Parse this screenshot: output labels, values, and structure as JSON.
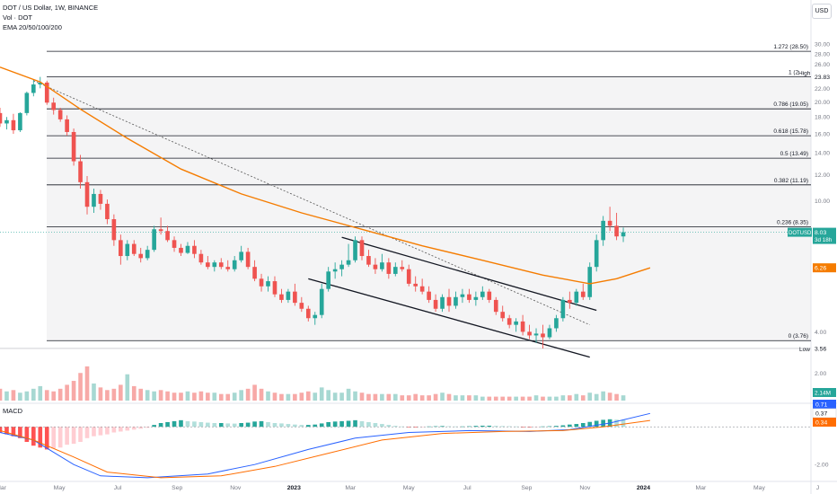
{
  "header": {
    "title": "DOT / US Dollar, 1W, BINANCE",
    "vol": "Vol · DOT",
    "ema": "EMA 20/50/100/200",
    "currency_button": "USD"
  },
  "colors": {
    "up": "#26a69a",
    "down": "#ef5350",
    "ema": "#f57c00",
    "fib": "#131722",
    "dashed": "#555555",
    "macd_line": "#2962ff",
    "signal_line": "#ff6d00",
    "vol_up": "#a7d8d2",
    "vol_down": "#f7a9a7"
  },
  "chart_data": [
    {
      "type": "candlestick",
      "title": "DOT / US Dollar, 1W, BINANCE",
      "y_scale": "log",
      "ylim": [
        3.3,
        36
      ],
      "x_start": "2022-02-28",
      "x_end": "2024-06-24",
      "y_ticks": [
        "2.00",
        "4.00",
        "6.26",
        "8.03",
        "10.00",
        "12.00",
        "14.00",
        "16.00",
        "18.00",
        "20.00",
        "22.00",
        "23.83",
        "26.00",
        "28.00",
        "30.00"
      ],
      "y_tick_values": [
        2,
        4,
        6.26,
        8.03,
        10,
        12,
        14,
        16,
        18,
        20,
        22,
        23.83,
        26,
        28,
        30
      ],
      "x_ticks": [
        {
          "label": "Mar",
          "date": "2022-03-01"
        },
        {
          "label": "May",
          "date": "2022-05-01"
        },
        {
          "label": "Jul",
          "date": "2022-07-01"
        },
        {
          "label": "Sep",
          "date": "2022-09-01"
        },
        {
          "label": "Nov",
          "date": "2022-11-01"
        },
        {
          "label": "2023",
          "date": "2023-01-01"
        },
        {
          "label": "Mar",
          "date": "2023-03-01"
        },
        {
          "label": "May",
          "date": "2023-05-01"
        },
        {
          "label": "Jul",
          "date": "2023-07-01"
        },
        {
          "label": "Sep",
          "date": "2023-09-01"
        },
        {
          "label": "Nov",
          "date": "2023-11-01"
        },
        {
          "label": "2024",
          "date": "2024-01-01"
        },
        {
          "label": "Mar",
          "date": "2024-03-01"
        },
        {
          "label": "May",
          "date": "2024-05-01"
        },
        {
          "label": "J",
          "date": "2024-07-01"
        }
      ],
      "fib_levels": [
        {
          "label": "1.272 (28.50)",
          "value": 28.5
        },
        {
          "label": "1 (2",
          "value": 23.83
        },
        {
          "label": "0.786 (19.05)",
          "value": 19.05
        },
        {
          "label": "0.618 (15.78)",
          "value": 15.78
        },
        {
          "label": "0.5 (13.49)",
          "value": 13.49
        },
        {
          "label": "0.382 (11.19)",
          "value": 11.19
        },
        {
          "label": "0.236 (8.35)",
          "value": 8.35
        },
        {
          "label": "0 (3.76)",
          "value": 3.76
        }
      ],
      "annotations": {
        "high_label": "High",
        "high_value": "23.83",
        "low_label": "Low",
        "low_value": "3.56"
      },
      "price_tags": [
        {
          "label": "DOTUSD",
          "value": "8.03",
          "sub": "3d 18h",
          "color": "#26a69a",
          "price": 8.03
        },
        {
          "label": "",
          "value": "6.26",
          "sub": "",
          "color": "#f57c00",
          "price": 6.26
        }
      ],
      "ohlc_start_date": "2022-02-28",
      "ohlc": [
        [
          18.5,
          19.2,
          16.8,
          17.2
        ],
        [
          17.2,
          18.0,
          16.5,
          17.6
        ],
        [
          17.6,
          18.4,
          16.0,
          16.4
        ],
        [
          16.4,
          18.6,
          16.2,
          18.5
        ],
        [
          18.5,
          21.5,
          18.2,
          21.3
        ],
        [
          21.3,
          23.4,
          20.8,
          22.6
        ],
        [
          22.6,
          23.83,
          22.0,
          22.9
        ],
        [
          22.9,
          23.2,
          19.6,
          19.9
        ],
        [
          19.9,
          20.6,
          18.3,
          18.9
        ],
        [
          18.9,
          19.2,
          17.4,
          17.7
        ],
        [
          17.7,
          18.2,
          15.8,
          16.2
        ],
        [
          16.2,
          16.6,
          12.8,
          13.2
        ],
        [
          13.2,
          13.8,
          10.9,
          11.4
        ],
        [
          11.4,
          11.9,
          9.1,
          9.6
        ],
        [
          9.6,
          10.9,
          9.2,
          10.5
        ],
        [
          10.5,
          10.8,
          9.4,
          9.8
        ],
        [
          9.8,
          10.1,
          8.5,
          8.8
        ],
        [
          8.8,
          9.1,
          7.3,
          7.6
        ],
        [
          7.6,
          7.9,
          6.4,
          6.8
        ],
        [
          6.8,
          7.6,
          6.6,
          7.4
        ],
        [
          7.4,
          7.6,
          6.8,
          6.9
        ],
        [
          6.9,
          7.2,
          6.5,
          6.7
        ],
        [
          6.7,
          7.3,
          6.6,
          7.1
        ],
        [
          7.1,
          8.4,
          7.0,
          8.2
        ],
        [
          8.2,
          8.9,
          7.9,
          8.1
        ],
        [
          8.1,
          8.4,
          7.5,
          7.6
        ],
        [
          7.6,
          7.8,
          7.0,
          7.2
        ],
        [
          7.2,
          7.4,
          6.8,
          6.95
        ],
        [
          6.95,
          7.5,
          6.9,
          7.3
        ],
        [
          7.3,
          7.6,
          6.7,
          6.9
        ],
        [
          6.9,
          7.1,
          6.4,
          6.5
        ],
        [
          6.5,
          6.8,
          6.2,
          6.3
        ],
        [
          6.3,
          6.6,
          6.1,
          6.5
        ],
        [
          6.5,
          6.7,
          6.2,
          6.3
        ],
        [
          6.3,
          6.6,
          6.1,
          6.2
        ],
        [
          6.2,
          6.8,
          6.1,
          6.6
        ],
        [
          6.6,
          7.3,
          6.5,
          7.0
        ],
        [
          7.0,
          7.2,
          6.2,
          6.3
        ],
        [
          6.3,
          6.6,
          5.7,
          5.8
        ],
        [
          5.8,
          6.0,
          5.3,
          5.5
        ],
        [
          5.5,
          5.9,
          5.3,
          5.7
        ],
        [
          5.7,
          5.9,
          5.1,
          5.2
        ],
        [
          5.2,
          5.4,
          4.9,
          5.0
        ],
        [
          5.0,
          5.4,
          4.9,
          5.3
        ],
        [
          5.3,
          5.6,
          4.8,
          4.9
        ],
        [
          4.9,
          5.1,
          4.6,
          4.7
        ],
        [
          4.7,
          4.8,
          4.3,
          4.4
        ],
        [
          4.4,
          4.6,
          4.2,
          4.5
        ],
        [
          4.5,
          5.6,
          4.4,
          5.4
        ],
        [
          5.4,
          6.3,
          5.3,
          6.1
        ],
        [
          6.1,
          6.5,
          5.8,
          6.2
        ],
        [
          6.2,
          6.6,
          5.9,
          6.4
        ],
        [
          6.4,
          7.4,
          6.3,
          6.6
        ],
        [
          6.6,
          7.8,
          6.5,
          7.6
        ],
        [
          7.6,
          7.8,
          6.6,
          6.8
        ],
        [
          6.8,
          7.1,
          6.3,
          6.4
        ],
        [
          6.4,
          6.7,
          6.0,
          6.2
        ],
        [
          6.2,
          6.9,
          6.1,
          6.5
        ],
        [
          6.5,
          6.7,
          5.8,
          6.0
        ],
        [
          6.0,
          6.5,
          5.9,
          6.3
        ],
        [
          6.3,
          6.6,
          6.1,
          6.2
        ],
        [
          6.2,
          6.4,
          5.5,
          5.6
        ],
        [
          5.6,
          5.9,
          5.3,
          5.5
        ],
        [
          5.5,
          5.8,
          5.2,
          5.3
        ],
        [
          5.3,
          5.5,
          4.9,
          5.0
        ],
        [
          5.0,
          5.2,
          4.6,
          4.7
        ],
        [
          4.7,
          5.2,
          4.6,
          5.1
        ],
        [
          5.1,
          5.4,
          4.6,
          4.8
        ],
        [
          4.8,
          5.3,
          4.7,
          5.1
        ],
        [
          5.1,
          5.4,
          4.9,
          5.2
        ],
        [
          5.2,
          5.4,
          4.9,
          5.0
        ],
        [
          5.0,
          5.3,
          4.8,
          5.1
        ],
        [
          5.1,
          5.5,
          5.0,
          5.3
        ],
        [
          5.3,
          5.4,
          4.9,
          5.0
        ],
        [
          5.0,
          5.1,
          4.5,
          4.6
        ],
        [
          4.6,
          4.8,
          4.3,
          4.4
        ],
        [
          4.4,
          4.5,
          4.1,
          4.2
        ],
        [
          4.2,
          4.4,
          4.0,
          4.3
        ],
        [
          4.3,
          4.5,
          3.9,
          4.0
        ],
        [
          4.0,
          4.2,
          3.8,
          3.9
        ],
        [
          3.9,
          4.1,
          3.7,
          3.95
        ],
        [
          3.95,
          4.2,
          3.56,
          3.85
        ],
        [
          3.85,
          4.2,
          3.8,
          4.1
        ],
        [
          4.1,
          4.5,
          4.0,
          4.4
        ],
        [
          4.4,
          5.1,
          4.3,
          5.0
        ],
        [
          5.0,
          5.3,
          4.7,
          4.9
        ],
        [
          4.9,
          5.4,
          4.8,
          5.3
        ],
        [
          5.3,
          5.6,
          5.0,
          5.1
        ],
        [
          5.1,
          6.5,
          5.0,
          6.3
        ],
        [
          6.3,
          7.9,
          6.1,
          7.6
        ],
        [
          7.6,
          9.0,
          7.3,
          8.7
        ],
        [
          8.7,
          9.6,
          8.1,
          8.4
        ],
        [
          8.4,
          9.2,
          7.6,
          7.8
        ],
        [
          7.8,
          8.3,
          7.5,
          8.03
        ]
      ],
      "ema_points": [
        [
          "2022-02-28",
          25.5
        ],
        [
          "2022-04-11",
          23.0
        ],
        [
          "2022-05-23",
          19.0
        ],
        [
          "2022-07-11",
          15.5
        ],
        [
          "2022-09-05",
          12.5
        ],
        [
          "2022-11-07",
          10.5
        ],
        [
          "2023-01-09",
          9.2
        ],
        [
          "2023-03-13",
          8.2
        ],
        [
          "2023-05-15",
          7.3
        ],
        [
          "2023-07-17",
          6.6
        ],
        [
          "2023-09-18",
          5.95
        ],
        [
          "2023-11-06",
          5.6
        ],
        [
          "2023-12-04",
          5.8
        ],
        [
          "2024-01-08",
          6.26
        ]
      ],
      "trendlines": [
        {
          "style": "dashed",
          "from": [
            "2022-04-04",
            23.2
          ],
          "to": [
            "2023-11-06",
            4.2
          ]
        },
        {
          "style": "solid",
          "from": [
            "2023-02-20",
            7.75
          ],
          "to": [
            "2023-11-13",
            4.65
          ]
        },
        {
          "style": "solid",
          "from": [
            "2023-01-16",
            5.8
          ],
          "to": [
            "2023-11-06",
            3.35
          ]
        }
      ],
      "volume": {
        "axis_label": "2.14M",
        "values": [
          0.9,
          0.7,
          0.8,
          0.6,
          0.7,
          0.9,
          1.1,
          0.8,
          0.7,
          0.9,
          1.2,
          1.5,
          2.1,
          2.6,
          1.3,
          1.0,
          0.8,
          0.9,
          1.2,
          2.0,
          1.1,
          0.9,
          0.8,
          0.7,
          0.8,
          0.7,
          0.6,
          0.6,
          0.7,
          0.6,
          0.7,
          0.6,
          0.6,
          0.5,
          0.5,
          0.6,
          0.8,
          0.9,
          1.2,
          0.9,
          0.7,
          0.6,
          0.5,
          0.5,
          0.5,
          0.6,
          0.7,
          0.6,
          1.0,
          0.8,
          0.6,
          0.6,
          0.9,
          0.7,
          0.6,
          0.5,
          0.5,
          0.5,
          0.5,
          0.5,
          0.4,
          0.4,
          0.5,
          0.4,
          0.4,
          0.5,
          0.6,
          0.5,
          0.4,
          0.4,
          0.4,
          0.4,
          0.3,
          0.3,
          0.3,
          0.3,
          0.3,
          0.3,
          0.3,
          0.3,
          0.4,
          0.3,
          0.3,
          0.3,
          0.4,
          0.4,
          0.5,
          0.4,
          0.6,
          0.5,
          0.7,
          0.6,
          0.5,
          0.4
        ]
      }
    },
    {
      "type": "macd",
      "title": "MACD",
      "ylim": [
        -2.8,
        1.2
      ],
      "y_ticks": [
        "-2.00",
        "0.71",
        "0.37",
        "0.34"
      ],
      "y_tick_values": [
        -2.0,
        0.71,
        0.37,
        0.34
      ],
      "tags": [
        {
          "value": "0.71",
          "color": "#2962ff",
          "level": 0.71
        },
        {
          "value": "0.37",
          "color": "#ffffff",
          "text_color": "#131722",
          "level": 0.37
        },
        {
          "value": "0.34",
          "color": "#ff6d00",
          "level": 0.34
        }
      ],
      "macd_points": [
        [
          "2022-02-28",
          -0.3
        ],
        [
          "2022-04-04",
          -0.7
        ],
        [
          "2022-05-16",
          -2.0
        ],
        [
          "2022-06-13",
          -2.6
        ],
        [
          "2022-08-01",
          -2.7
        ],
        [
          "2022-10-03",
          -2.5
        ],
        [
          "2022-11-21",
          -2.0
        ],
        [
          "2023-01-16",
          -1.2
        ],
        [
          "2023-03-06",
          -0.6
        ],
        [
          "2023-05-01",
          -0.3
        ],
        [
          "2023-07-03",
          -0.2
        ],
        [
          "2023-09-04",
          -0.25
        ],
        [
          "2023-10-16",
          -0.15
        ],
        [
          "2023-11-27",
          0.2
        ],
        [
          "2024-01-08",
          0.71
        ]
      ],
      "signal_points": [
        [
          "2022-02-28",
          -0.2
        ],
        [
          "2022-04-04",
          -0.7
        ],
        [
          "2022-05-16",
          -1.6
        ],
        [
          "2022-06-20",
          -2.4
        ],
        [
          "2022-08-15",
          -2.7
        ],
        [
          "2022-10-17",
          -2.6
        ],
        [
          "2022-12-12",
          -2.1
        ],
        [
          "2023-02-06",
          -1.4
        ],
        [
          "2023-04-03",
          -0.7
        ],
        [
          "2023-06-05",
          -0.35
        ],
        [
          "2023-08-07",
          -0.25
        ],
        [
          "2023-10-09",
          -0.2
        ],
        [
          "2023-11-20",
          0.0
        ],
        [
          "2024-01-08",
          0.34
        ]
      ],
      "histogram": [
        -0.3,
        -0.4,
        -0.5,
        -0.6,
        -0.8,
        -1.0,
        -1.1,
        -1.2,
        -1.15,
        -1.1,
        -0.95,
        -0.9,
        -0.8,
        -0.6,
        -0.5,
        -0.45,
        -0.4,
        -0.3,
        -0.25,
        -0.2,
        -0.15,
        -0.1,
        -0.05,
        0.1,
        0.2,
        0.25,
        0.3,
        0.35,
        0.3,
        0.28,
        0.25,
        0.22,
        0.2,
        0.2,
        0.18,
        0.17,
        0.2,
        0.22,
        0.28,
        0.3,
        0.25,
        0.2,
        0.18,
        0.15,
        0.12,
        0.1,
        0.1,
        0.12,
        0.18,
        0.25,
        0.28,
        0.3,
        0.32,
        0.35,
        0.3,
        0.25,
        0.2,
        0.15,
        0.1,
        0.05,
        0.02,
        -0.02,
        -0.03,
        -0.02,
        0.02,
        0.03,
        0.04,
        0.03,
        0.02,
        0.02,
        0.03,
        0.05,
        0.06,
        0.06,
        0.05,
        0.04,
        0.03,
        0.02,
        -0.02,
        -0.03,
        -0.02,
        0.02,
        0.03,
        0.05,
        0.08,
        0.12,
        0.15,
        0.2,
        0.26,
        0.32,
        0.37,
        0.4,
        0.38,
        0.37
      ]
    }
  ]
}
